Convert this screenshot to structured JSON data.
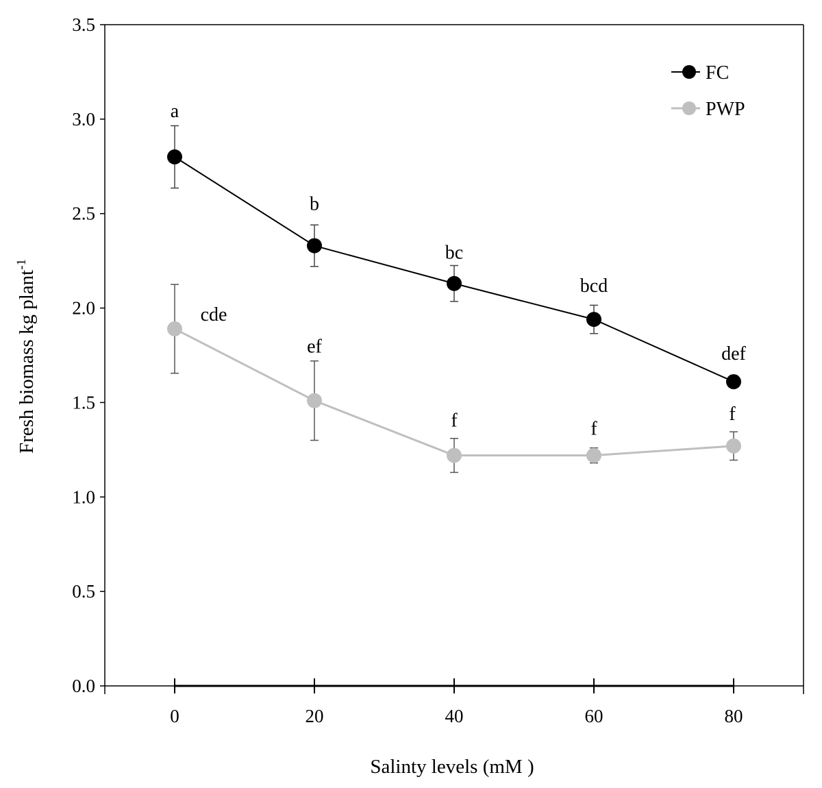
{
  "chart_data": {
    "type": "line",
    "title": "",
    "xlabel": "Salinty levels (mM )",
    "ylabel": "Fresh biomass kg plant",
    "ylabel_superscript": "-1",
    "x": [
      0,
      20,
      40,
      60,
      80
    ],
    "xlim": [
      -10,
      90
    ],
    "ylim": [
      0,
      3.5
    ],
    "x_ticks": [
      "0",
      "20",
      "40",
      "60",
      "80"
    ],
    "y_ticks": [
      "0.0",
      "0.5",
      "1.0",
      "1.5",
      "2.0",
      "2.5",
      "3.0",
      "3.5"
    ],
    "grid": false,
    "legend_position": "top-right",
    "series": [
      {
        "name": "FC",
        "color": "#000000",
        "values": [
          2.8,
          2.33,
          2.13,
          1.94,
          1.61
        ],
        "error": [
          0.165,
          0.11,
          0.095,
          0.075,
          0.0
        ],
        "labels": [
          "a",
          "b",
          "bc",
          "bcd",
          "def"
        ]
      },
      {
        "name": "PWP",
        "color": "#bfbfbf",
        "values": [
          1.89,
          1.51,
          1.22,
          1.22,
          1.27
        ],
        "error": [
          0.235,
          0.21,
          0.09,
          0.04,
          0.075
        ],
        "labels": [
          "cde",
          "ef",
          "f",
          "f",
          "f"
        ]
      }
    ]
  }
}
